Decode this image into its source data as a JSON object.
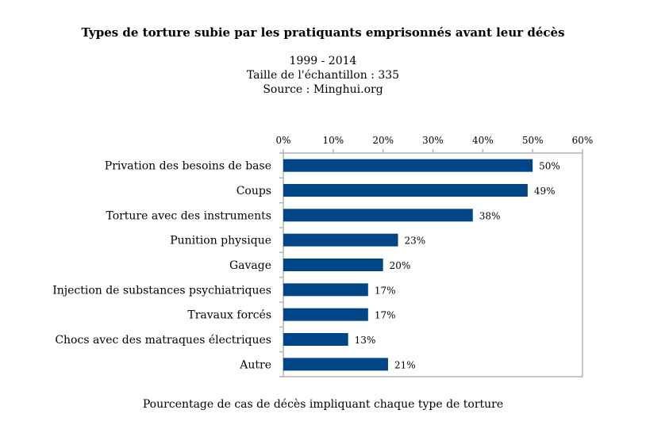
{
  "chart_data": {
    "type": "bar",
    "orientation": "horizontal",
    "title": "Types de torture subie par les pratiquants emprisonnés  avant leur décès",
    "subtitle": [
      "1999 - 2014",
      "Taille de l'échantillon  : 335",
      "Source : Minghui.org"
    ],
    "xlabel": "Pourcentage de cas de décès impliquant  chaque type de torture",
    "ylabel": "",
    "categories": [
      "Privation des besoins de base",
      "Coups",
      "Torture avec des instruments",
      "Punition physique",
      "Gavage",
      "Injection de substances psychiatriques",
      "Travaux forcés",
      "Chocs avec des matraques électriques",
      "Autre"
    ],
    "values": [
      50,
      49,
      38,
      23,
      20,
      17,
      17,
      13,
      21
    ],
    "data_labels": [
      "50%",
      "49%",
      "38%",
      "23%",
      "20%",
      "17%",
      "17%",
      "13%",
      "21%"
    ],
    "xlim": [
      0,
      60
    ],
    "xticks": [
      0,
      10,
      20,
      30,
      40,
      50,
      60
    ],
    "xtick_labels": [
      "0%",
      "10%",
      "20%",
      "30%",
      "40%",
      "50%",
      "60%"
    ],
    "x_axis_position": "top",
    "grid": false,
    "legend": "none",
    "bar_color": "#004586"
  }
}
